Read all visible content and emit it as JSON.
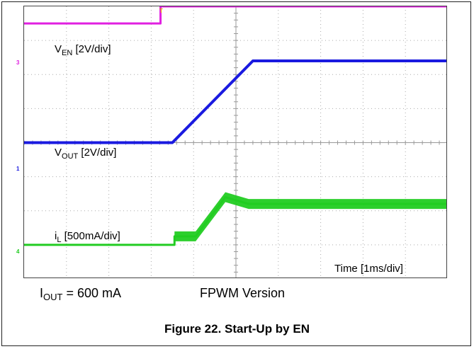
{
  "chart_data": {
    "type": "line",
    "xlabel": "Time [1ms/div]",
    "grid": true,
    "grid_divisions": {
      "x": 10,
      "y": 8
    },
    "series": [
      {
        "name": "VEN [2V/div]",
        "label_main": "V",
        "label_sub": "EN",
        "label_rest": " [2V/div]",
        "color": "#e020e0",
        "channel_marker": "3",
        "baseline_div": 7.5,
        "points": [
          [
            0,
            7.5
          ],
          [
            3.22,
            7.5
          ],
          [
            3.22,
            8.0
          ],
          [
            10,
            8.0
          ]
        ]
      },
      {
        "name": "VOUT [2V/div]",
        "label_main": "V",
        "label_sub": "OUT",
        "label_rest": " [2V/div]",
        "color": "#1a1ae0",
        "channel_marker": "1",
        "baseline_div": 4.0,
        "points": [
          [
            0,
            4.0
          ],
          [
            3.5,
            4.0
          ],
          [
            5.4,
            6.4
          ],
          [
            10,
            6.4
          ]
        ]
      },
      {
        "name": "iL [500mA/div]",
        "label_main": "i",
        "label_sub": "L",
        "label_rest": " [500mA/div]",
        "color": "#22cc22",
        "channel_marker": "4",
        "baseline_div": 1.0,
        "points": [
          [
            0,
            1.0
          ],
          [
            3.55,
            1.0
          ],
          [
            3.55,
            1.25
          ],
          [
            4.05,
            1.25
          ],
          [
            4.75,
            2.4
          ],
          [
            5.3,
            2.2
          ],
          [
            10,
            2.2
          ]
        ]
      }
    ]
  },
  "trigger_marker": "T",
  "bottom_left": {
    "main": "I",
    "sub": "OUT",
    "rest": " = 600 mA"
  },
  "bottom_center": "FPWM Version",
  "caption": "Figure 22. Start-Up by EN"
}
